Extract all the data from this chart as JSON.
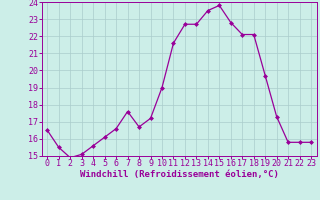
{
  "x": [
    0,
    1,
    2,
    3,
    4,
    5,
    6,
    7,
    8,
    9,
    10,
    11,
    12,
    13,
    14,
    15,
    16,
    17,
    18,
    19,
    20,
    21,
    22,
    23
  ],
  "y": [
    16.5,
    15.5,
    14.9,
    15.1,
    15.6,
    16.1,
    16.6,
    17.6,
    16.7,
    17.2,
    19.0,
    21.6,
    22.7,
    22.7,
    23.5,
    23.8,
    22.8,
    22.1,
    22.1,
    19.7,
    17.3,
    15.8,
    15.8,
    15.8
  ],
  "xlabel": "Windchill (Refroidissement éolien,°C)",
  "ylim": [
    15,
    24
  ],
  "xlim": [
    -0.5,
    23.5
  ],
  "yticks": [
    15,
    16,
    17,
    18,
    19,
    20,
    21,
    22,
    23,
    24
  ],
  "xticks": [
    0,
    1,
    2,
    3,
    4,
    5,
    6,
    7,
    8,
    9,
    10,
    11,
    12,
    13,
    14,
    15,
    16,
    17,
    18,
    19,
    20,
    21,
    22,
    23
  ],
  "line_color": "#990099",
  "marker": "D",
  "marker_size": 2.0,
  "bg_color": "#cceee8",
  "grid_color": "#aacccc",
  "xlabel_fontsize": 6.5,
  "tick_fontsize": 6.0,
  "linewidth": 0.9
}
